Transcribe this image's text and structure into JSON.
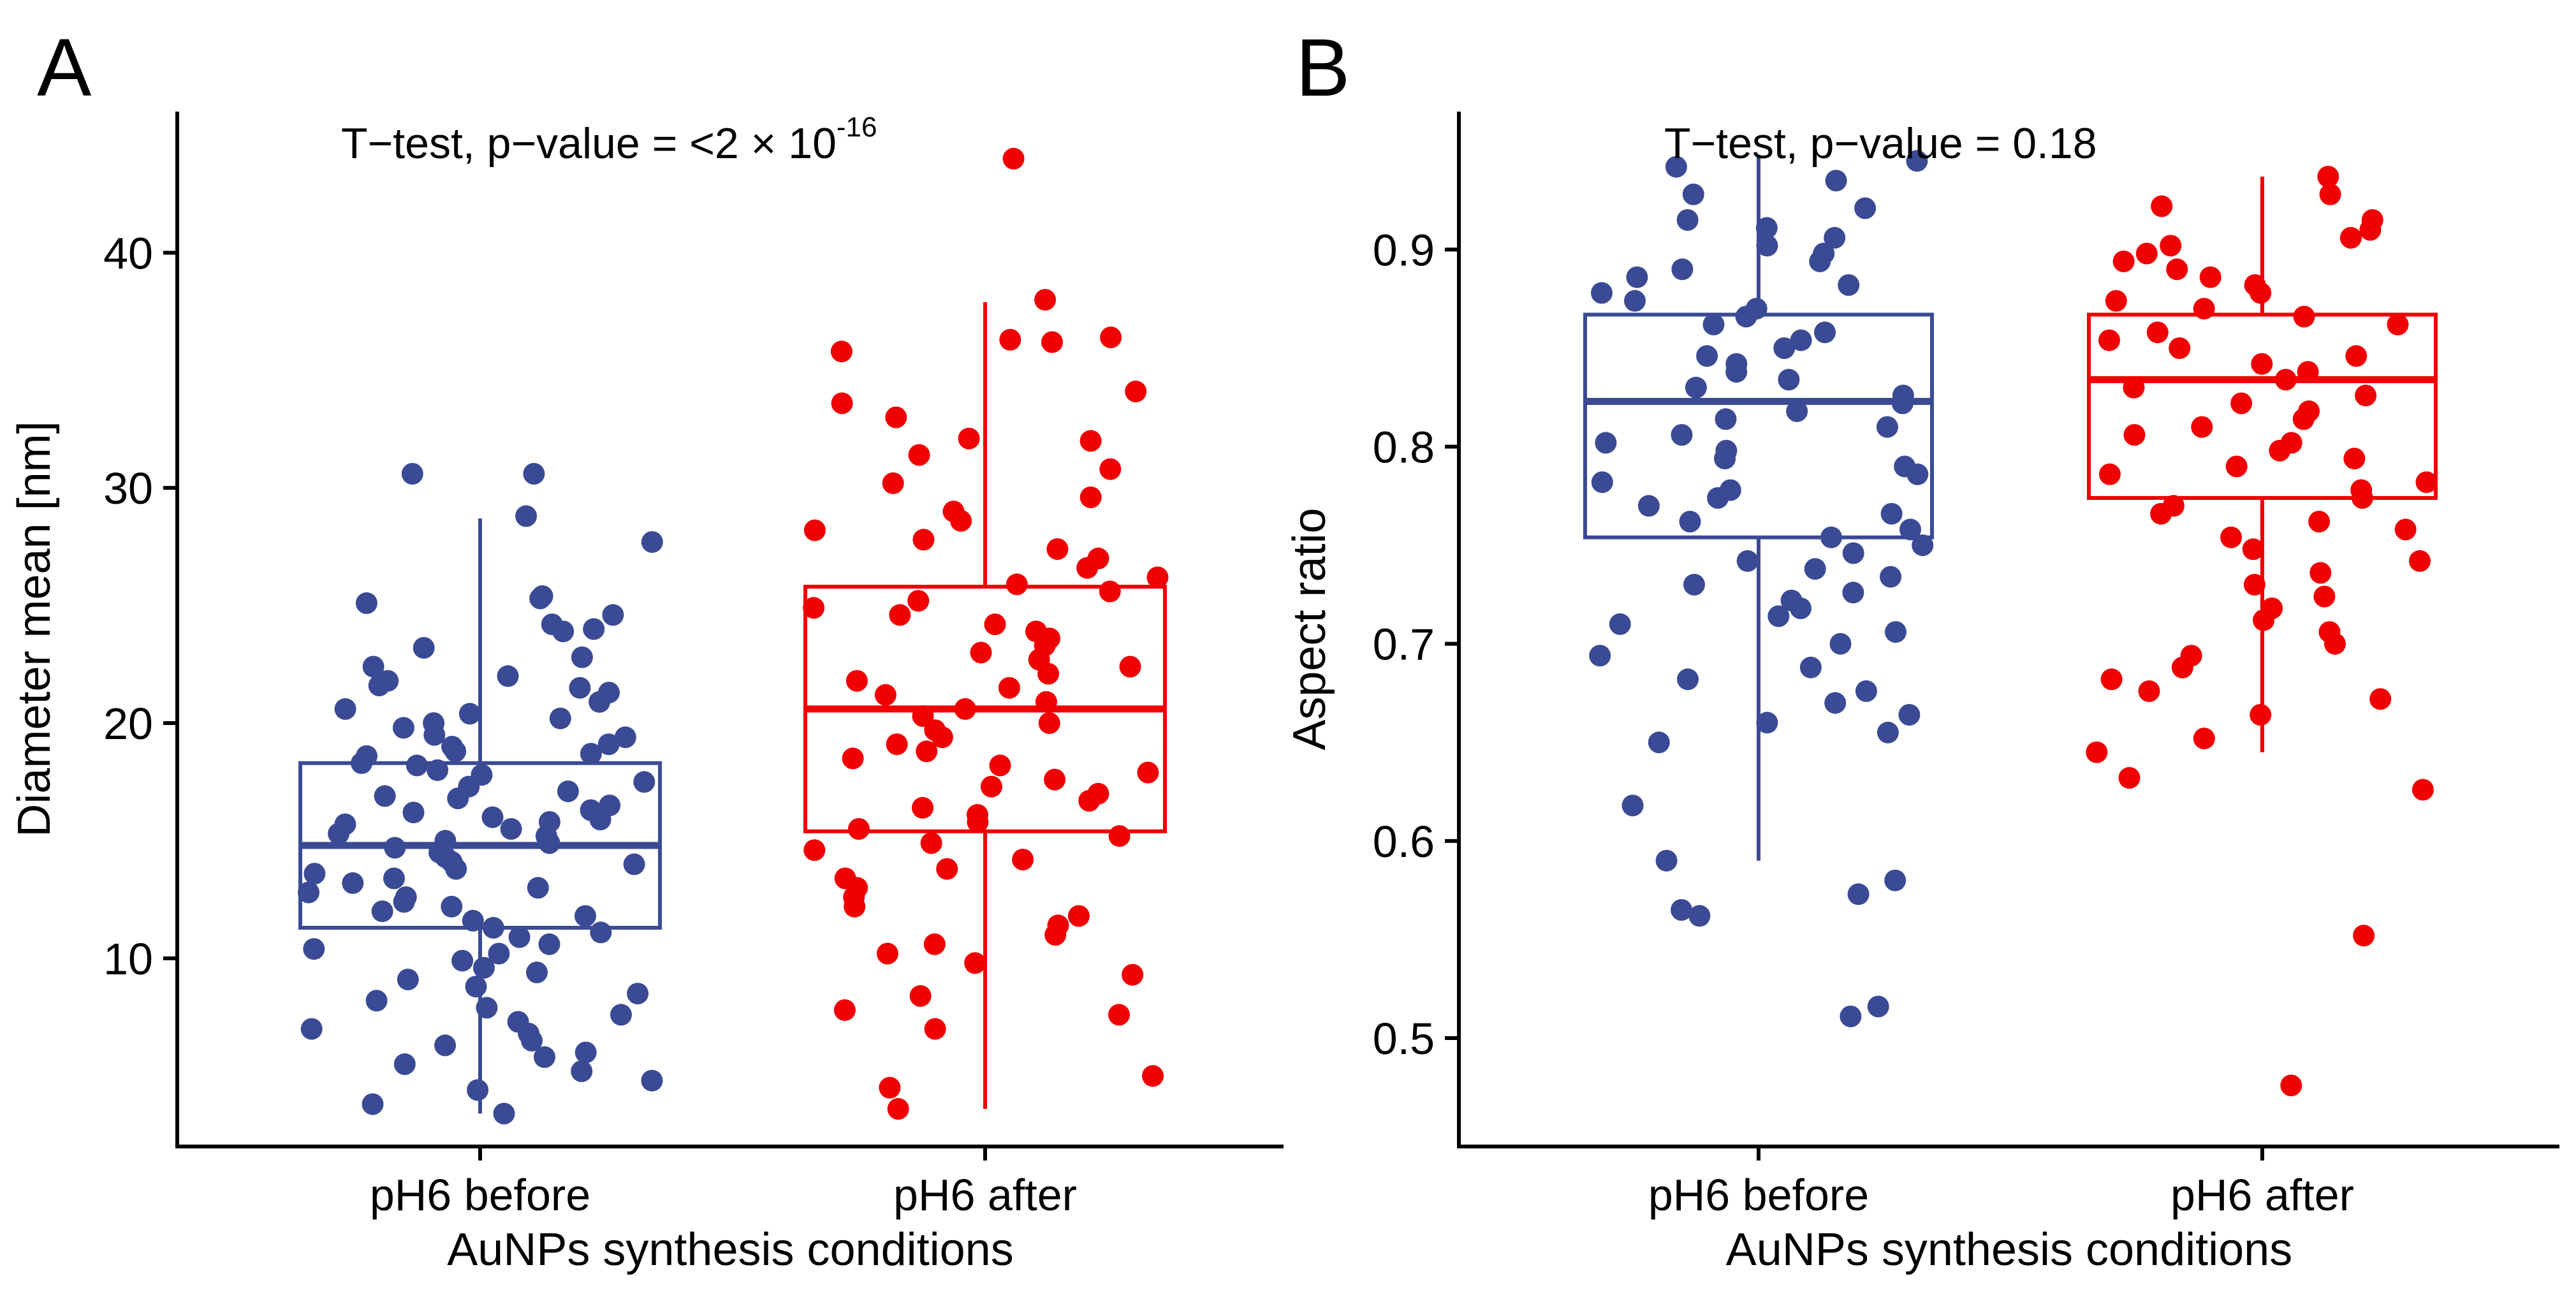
{
  "colors": {
    "before": "#3A4A94",
    "after": "#F00000",
    "axis": "#000000"
  },
  "chart_data": [
    {
      "type": "box",
      "panel_label": "A",
      "title": "",
      "xlabel": "AuNPs synthesis conditions",
      "ylabel": "Diameter mean [nm]",
      "ylim": [
        2,
        46
      ],
      "yticks": [
        10,
        20,
        30,
        40
      ],
      "grid": false,
      "legend": "none",
      "annotation": {
        "text": "T−test, p−value = <2 × 10",
        "superscript": "-16"
      },
      "categories": [
        "pH6 before",
        "pH6 after"
      ],
      "series": [
        {
          "name": "pH6 before",
          "color_key": "before",
          "box": {
            "whisker_low": 3.4,
            "q1": 11.3,
            "median": 14.8,
            "q3": 18.3,
            "whisker_high": 28.7
          },
          "points": [
            30.6,
            30.6,
            28.8,
            27.7,
            25.4,
            25.3,
            25.1,
            24.6,
            24.2,
            24.0,
            23.9,
            23.2,
            22.8,
            22.4,
            22.0,
            21.8,
            21.6,
            21.5,
            21.3,
            20.9,
            20.6,
            20.4,
            20.2,
            20.0,
            19.8,
            19.5,
            19.4,
            19.1,
            19.0,
            18.8,
            18.7,
            18.6,
            18.3,
            18.2,
            18.0,
            17.8,
            17.5,
            17.3,
            17.1,
            16.9,
            16.8,
            16.5,
            16.3,
            16.2,
            16.0,
            15.9,
            15.8,
            15.7,
            15.5,
            15.3,
            15.2,
            15.0,
            14.9,
            14.7,
            14.5,
            14.3,
            14.1,
            14.0,
            13.8,
            13.6,
            13.4,
            13.2,
            13.0,
            12.8,
            12.6,
            12.4,
            12.2,
            12.0,
            11.8,
            11.6,
            11.3,
            11.1,
            10.9,
            10.6,
            10.4,
            10.2,
            9.9,
            9.6,
            9.4,
            9.1,
            8.8,
            8.5,
            8.2,
            7.9,
            7.6,
            7.3,
            7.0,
            6.8,
            6.5,
            6.3,
            6.0,
            5.8,
            5.5,
            5.2,
            4.8,
            4.4,
            3.8,
            3.4
          ],
          "outliers": []
        },
        {
          "name": "pH6 after",
          "color_key": "after",
          "box": {
            "whisker_low": 3.6,
            "q1": 15.4,
            "median": 20.6,
            "q3": 25.8,
            "whisker_high": 37.9
          },
          "points": [
            38.0,
            36.4,
            36.3,
            36.2,
            35.8,
            34.1,
            33.6,
            33.0,
            32.1,
            32.0,
            31.4,
            30.8,
            30.2,
            29.6,
            29.0,
            28.6,
            28.2,
            27.8,
            27.4,
            27.0,
            26.6,
            26.2,
            25.9,
            25.6,
            25.2,
            24.9,
            24.6,
            24.2,
            23.9,
            23.6,
            23.3,
            23.0,
            22.7,
            22.4,
            22.1,
            21.8,
            21.5,
            21.2,
            20.9,
            20.6,
            20.3,
            20.0,
            19.7,
            19.4,
            19.1,
            18.8,
            18.5,
            18.2,
            17.9,
            17.6,
            17.3,
            17.0,
            16.7,
            16.4,
            16.1,
            15.8,
            15.5,
            15.2,
            14.9,
            14.6,
            14.2,
            13.8,
            13.4,
            13.0,
            12.6,
            12.2,
            11.8,
            11.4,
            11.0,
            10.6,
            10.2,
            9.8,
            9.3,
            8.4,
            7.8,
            7.6,
            7.0,
            5.0,
            4.5,
            3.6
          ],
          "outliers": [
            44.0
          ]
        }
      ]
    },
    {
      "type": "box",
      "panel_label": "B",
      "title": "",
      "xlabel": "AuNPs synthesis conditions",
      "ylabel": "Aspect ratio",
      "ylim": [
        0.445,
        0.97
      ],
      "yticks": [
        0.5,
        0.6,
        0.7,
        0.8,
        0.9
      ],
      "ytick_labels": [
        "0.5",
        "0.6",
        "0.7",
        "0.8",
        "0.9"
      ],
      "grid": false,
      "legend": "none",
      "annotation": {
        "text": "T−test, p−value = 0.18",
        "superscript": ""
      },
      "categories": [
        "pH6 before",
        "pH6 after"
      ],
      "series": [
        {
          "name": "pH6 before",
          "color_key": "before",
          "box": {
            "whisker_low": 0.59,
            "q1": 0.754,
            "median": 0.823,
            "q3": 0.867,
            "whisker_high": 0.948
          },
          "points": [
            0.945,
            0.942,
            0.935,
            0.928,
            0.921,
            0.915,
            0.911,
            0.906,
            0.902,
            0.898,
            0.894,
            0.89,
            0.886,
            0.882,
            0.878,
            0.874,
            0.87,
            0.866,
            0.862,
            0.858,
            0.854,
            0.85,
            0.846,
            0.842,
            0.838,
            0.834,
            0.83,
            0.826,
            0.822,
            0.818,
            0.814,
            0.81,
            0.806,
            0.802,
            0.798,
            0.794,
            0.79,
            0.786,
            0.782,
            0.778,
            0.774,
            0.77,
            0.766,
            0.762,
            0.758,
            0.754,
            0.75,
            0.746,
            0.742,
            0.738,
            0.734,
            0.73,
            0.726,
            0.722,
            0.718,
            0.714,
            0.71,
            0.706,
            0.7,
            0.694,
            0.688,
            0.682,
            0.676,
            0.67,
            0.664,
            0.66,
            0.655,
            0.65,
            0.618,
            0.59
          ],
          "outliers": [
            0.58,
            0.573,
            0.565,
            0.562,
            0.516,
            0.511
          ]
        },
        {
          "name": "pH6 after",
          "color_key": "after",
          "box": {
            "whisker_low": 0.645,
            "q1": 0.774,
            "median": 0.834,
            "q3": 0.867,
            "whisker_high": 0.937
          },
          "points": [
            0.937,
            0.928,
            0.922,
            0.915,
            0.91,
            0.906,
            0.902,
            0.898,
            0.894,
            0.89,
            0.886,
            0.882,
            0.878,
            0.874,
            0.87,
            0.866,
            0.862,
            0.858,
            0.854,
            0.85,
            0.846,
            0.842,
            0.838,
            0.834,
            0.83,
            0.826,
            0.822,
            0.818,
            0.814,
            0.81,
            0.806,
            0.802,
            0.798,
            0.794,
            0.79,
            0.786,
            0.782,
            0.778,
            0.774,
            0.77,
            0.766,
            0.762,
            0.758,
            0.754,
            0.748,
            0.742,
            0.736,
            0.73,
            0.724,
            0.718,
            0.712,
            0.706,
            0.7,
            0.694,
            0.688,
            0.682,
            0.676,
            0.672,
            0.664,
            0.652,
            0.645
          ],
          "outliers": [
            0.632,
            0.626,
            0.552,
            0.476
          ]
        }
      ]
    }
  ]
}
